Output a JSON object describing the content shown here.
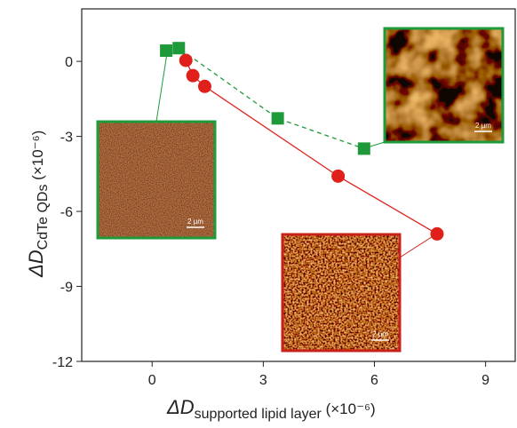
{
  "chart_data": {
    "type": "scatter-line",
    "xlabel": {
      "main": "ΔD",
      "sub": "supported lipid layer",
      "unit": " (×10⁻⁶)"
    },
    "ylabel": {
      "main": "ΔD",
      "sub": "CdTe QDs",
      "unit": " (×10⁻⁶)"
    },
    "xlim": [
      -1.9,
      9.8
    ],
    "ylim": [
      -12,
      2.1
    ],
    "xticks": [
      0,
      3,
      6,
      9
    ],
    "yticks": [
      0,
      -3,
      -6,
      -9,
      -12
    ],
    "series": [
      {
        "color": "#1f9a3a",
        "marker": "square",
        "dashed": true,
        "x": [
          0.38,
          0.72,
          3.39,
          5.72
        ],
        "values": [
          0.43,
          0.53,
          -2.28,
          -3.49
        ]
      },
      {
        "color": "#e0201b",
        "marker": "circle",
        "dashed": false,
        "x": [
          0.91,
          1.1,
          1.42,
          5.02,
          7.69
        ],
        "values": [
          0.04,
          -0.57,
          -1.0,
          -4.59,
          -6.9
        ]
      }
    ],
    "insets": [
      {
        "scale_label": "2 µm",
        "border_color": "#1f9a3a"
      },
      {
        "scale_label": "2 µm",
        "border_color": "#1f9a3a"
      },
      {
        "scale_label": "2 µm",
        "border_color": "#c8201b"
      }
    ]
  }
}
